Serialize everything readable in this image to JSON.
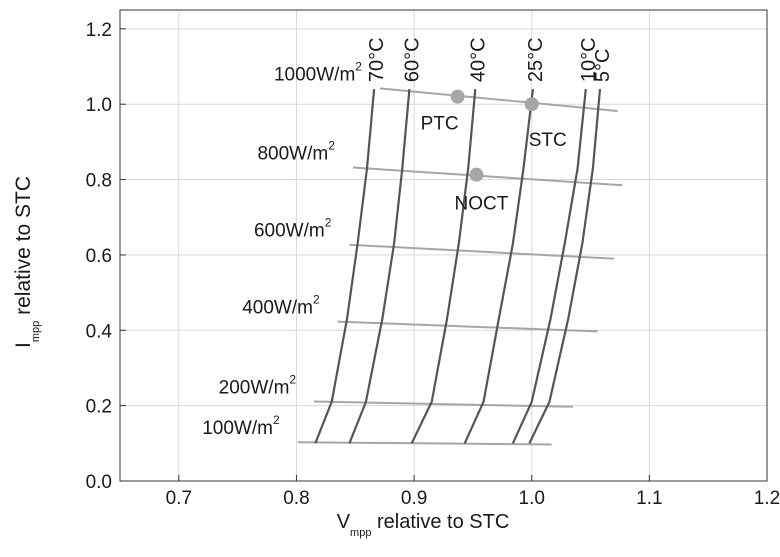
{
  "chart_data": {
    "type": "line",
    "xlabel": "V",
    "xlabel_sub": "mpp",
    "xlabel_rest": " relative to STC",
    "ylabel": "I",
    "ylabel_sub": "mpp",
    "ylabel_rest": " relative to STC",
    "xlim": [
      0.65,
      1.2
    ],
    "ylim": [
      0.0,
      1.25
    ],
    "xticks": [
      0.7,
      0.8,
      0.9,
      1.0,
      1.1,
      1.2
    ],
    "xtick_labels": [
      "0.7",
      "0.8",
      "0.9",
      "1.0",
      "1.1",
      "1.2"
    ],
    "yticks": [
      0.0,
      0.2,
      0.4,
      0.6,
      0.8,
      1.0,
      1.2
    ],
    "ytick_labels": [
      "0.0",
      "0.2",
      "0.4",
      "0.6",
      "0.8",
      "1.0",
      "1.2"
    ],
    "grid": true,
    "colors": {
      "temperature_curve": "#555555",
      "irradiance_line": "#a6a6a6",
      "marker": "#a6a6a6",
      "grid": "#d9d9d9"
    },
    "temperature_curves": [
      {
        "name": "70°C",
        "points": [
          [
            0.816,
            0.1
          ],
          [
            0.83,
            0.21
          ],
          [
            0.843,
            0.43
          ],
          [
            0.852,
            0.63
          ],
          [
            0.86,
            0.83
          ],
          [
            0.866,
            1.04
          ]
        ]
      },
      {
        "name": "60°C",
        "points": [
          [
            0.845,
            0.1
          ],
          [
            0.859,
            0.21
          ],
          [
            0.873,
            0.43
          ],
          [
            0.883,
            0.63
          ],
          [
            0.89,
            0.83
          ],
          [
            0.896,
            1.04
          ]
        ]
      },
      {
        "name": "40°C",
        "points": [
          [
            0.898,
            0.1
          ],
          [
            0.915,
            0.21
          ],
          [
            0.928,
            0.43
          ],
          [
            0.938,
            0.63
          ],
          [
            0.946,
            0.83
          ],
          [
            0.952,
            1.04
          ]
        ]
      },
      {
        "name": "25°C",
        "points": [
          [
            0.943,
            0.1
          ],
          [
            0.959,
            0.21
          ],
          [
            0.972,
            0.43
          ],
          [
            0.984,
            0.63
          ],
          [
            0.993,
            0.83
          ],
          [
            1.001,
            1.04
          ]
        ]
      },
      {
        "name": "10°C",
        "points": [
          [
            0.984,
            0.1
          ],
          [
            1.0,
            0.21
          ],
          [
            1.016,
            0.43
          ],
          [
            1.028,
            0.63
          ],
          [
            1.039,
            0.83
          ],
          [
            1.046,
            1.04
          ]
        ]
      },
      {
        "name": "5°C",
        "points": [
          [
            0.998,
            0.1
          ],
          [
            1.015,
            0.21
          ],
          [
            1.031,
            0.43
          ],
          [
            1.043,
            0.63
          ],
          [
            1.052,
            0.83
          ],
          [
            1.058,
            1.04
          ]
        ]
      }
    ],
    "irradiance_lines": [
      {
        "label": "1000W/m",
        "sup": "2",
        "x": [
          0.871,
          1.073
        ],
        "y": [
          1.042,
          0.982
        ]
      },
      {
        "label": "800W/m",
        "sup": "2",
        "x": [
          0.848,
          1.077
        ],
        "y": [
          0.832,
          0.785
        ]
      },
      {
        "label": "600W/m",
        "sup": "2",
        "x": [
          0.845,
          1.07
        ],
        "y": [
          0.627,
          0.59
        ]
      },
      {
        "label": "400W/m",
        "sup": "2",
        "x": [
          0.835,
          1.056
        ],
        "y": [
          0.423,
          0.397
        ]
      },
      {
        "label": "200W/m",
        "sup": "2",
        "x": [
          0.815,
          1.035
        ],
        "y": [
          0.211,
          0.197
        ]
      },
      {
        "label": "100W/m",
        "sup": "2",
        "x": [
          0.801,
          1.017
        ],
        "y": [
          0.103,
          0.097
        ]
      }
    ],
    "points": [
      {
        "name": "PTC",
        "x": 0.937,
        "y": 1.02
      },
      {
        "name": "STC",
        "x": 1.0,
        "y": 1.0
      },
      {
        "name": "NOCT",
        "x": 0.953,
        "y": 0.813
      }
    ]
  }
}
